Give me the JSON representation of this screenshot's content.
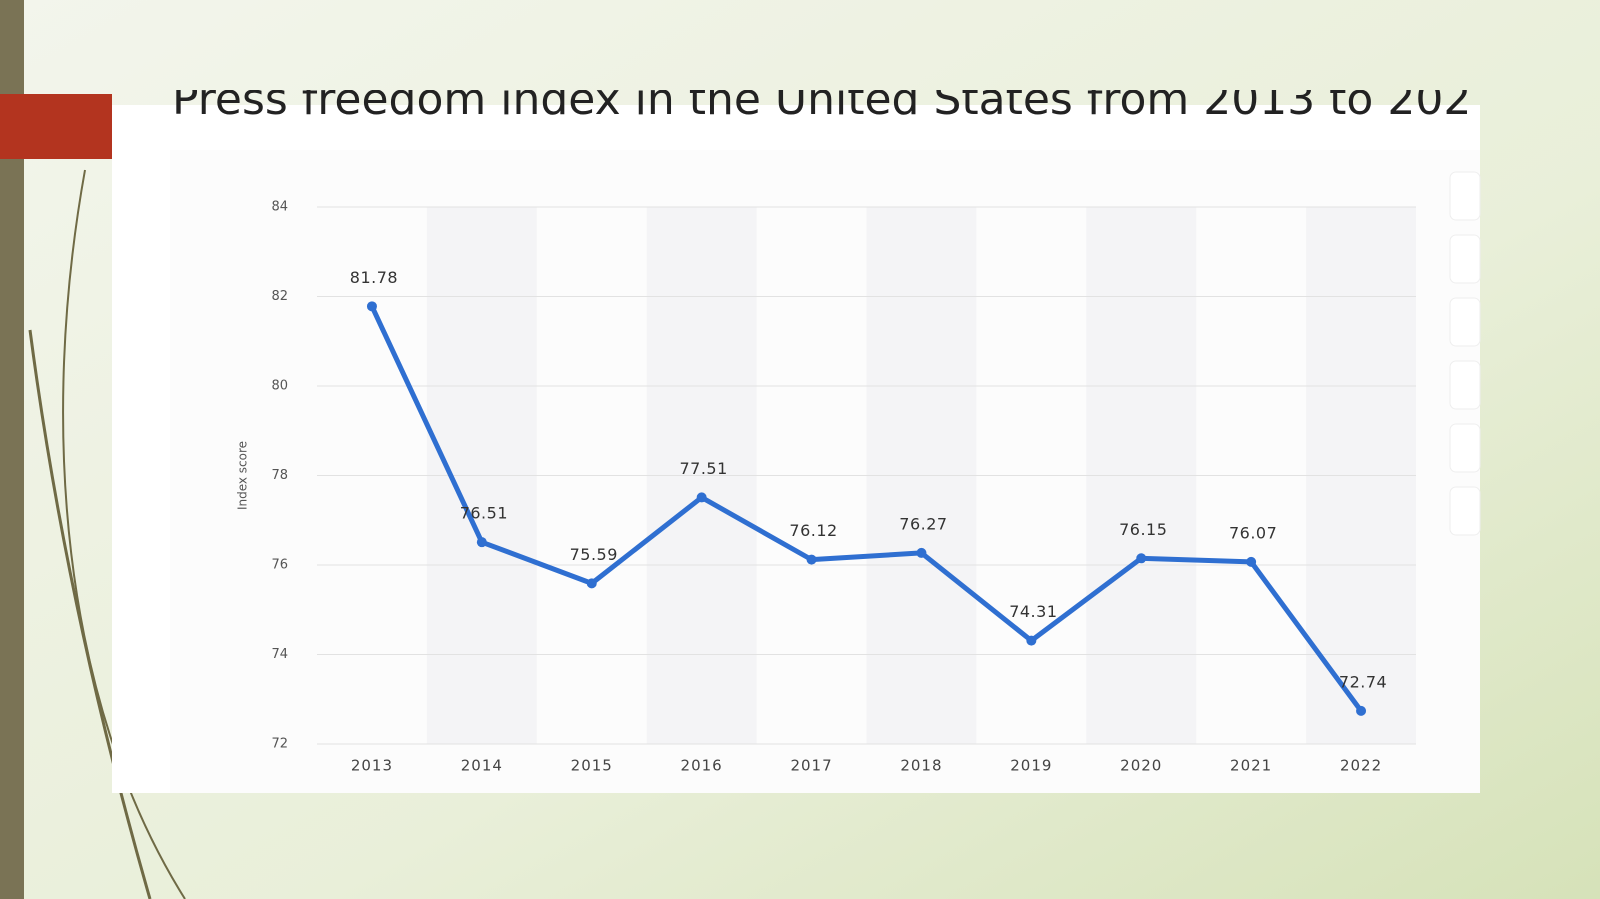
{
  "chart_data": {
    "type": "line",
    "title": "Press freedom index in the United States from 2013 to 202",
    "y_label": "Index score",
    "categories": [
      "2013",
      "2014",
      "2015",
      "2016",
      "2017",
      "2018",
      "2019",
      "2020",
      "2021",
      "2022"
    ],
    "series": [
      {
        "name": "Index score",
        "color": "#2f6fd1",
        "values": [
          81.78,
          76.51,
          75.59,
          77.51,
          76.12,
          76.27,
          74.31,
          76.15,
          76.07,
          72.74
        ]
      }
    ],
    "ylim": [
      72,
      84
    ],
    "yticks": [
      72,
      74,
      76,
      78,
      80,
      82,
      84
    ],
    "grid": true
  }
}
